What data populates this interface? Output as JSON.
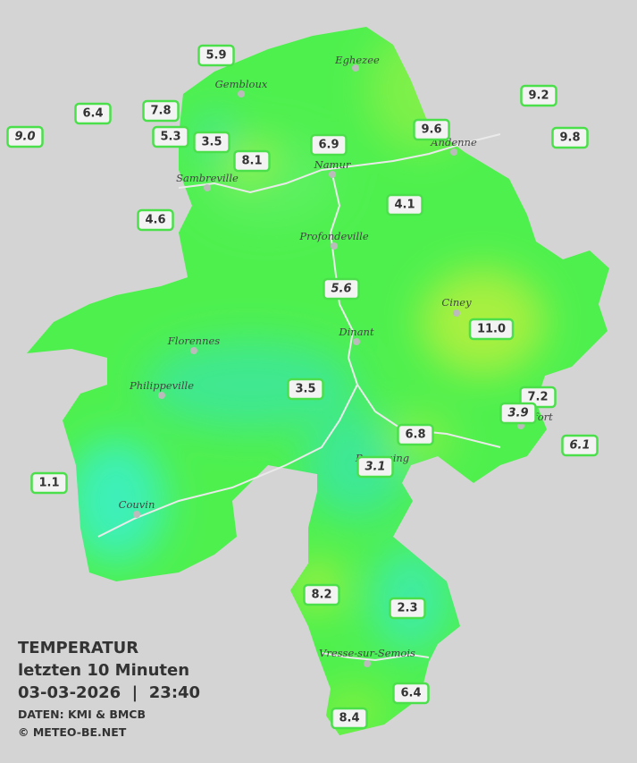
{
  "title": "TEMPERATUR",
  "subtitle": "letzten 10 Minuten",
  "datetime": "03-03-2026  |  23:40",
  "source": "DATEN: KMI & BMCB",
  "credit": "© METEO-BE.NET",
  "cities": [
    "Eghezee",
    "Gembloux",
    "Andenne",
    "Namur",
    "Sambreville",
    "Profondeville",
    "Ciney",
    "Dinant",
    "Florennes",
    "Philippeville",
    "Rochefort",
    "Beauraing",
    "Couvin",
    "Vresse-sur-Semois"
  ],
  "stations": [
    "5.9",
    "6.4",
    "7.8",
    "9.0",
    "5.3",
    "3.5",
    "8.1",
    "6.9",
    "9.6",
    "9.2",
    "9.8",
    "4.6",
    "4.1",
    "5.6",
    "11.0",
    "3.5",
    "7.2",
    "3.9",
    "6.8",
    "6.1",
    "3.1",
    "1.1",
    "8.2",
    "2.3",
    "6.4",
    "8.4"
  ]
}
